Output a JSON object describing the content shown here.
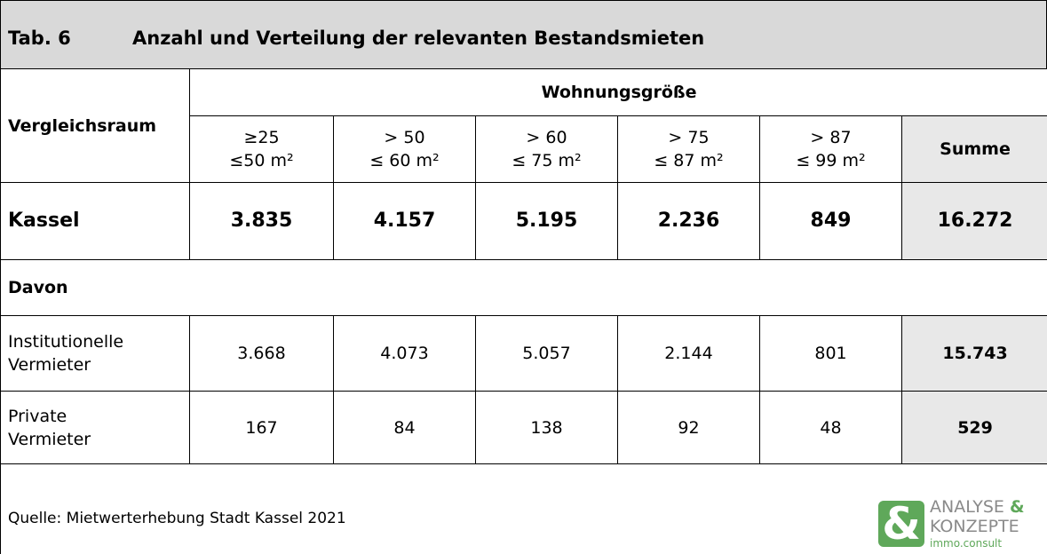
{
  "header": {
    "number": "Tab. 6",
    "title": "Anzahl und Verteilung der relevanten Bestandsmieten"
  },
  "table": {
    "row_header": "Vergleichsraum",
    "group_header": "Wohnungsgröße",
    "columns": [
      [
        "≥25",
        "≤50 m²"
      ],
      [
        "> 50",
        "≤ 60 m²"
      ],
      [
        "> 60",
        "≤ 75 m²"
      ],
      [
        "> 75",
        "≤ 87 m²"
      ],
      [
        "> 87",
        "≤ 99 m²"
      ],
      [
        "Summe"
      ]
    ],
    "rows": [
      {
        "label": [
          "Kassel"
        ],
        "cells": [
          "3.835",
          "4.157",
          "5.195",
          "2.236",
          "849",
          "16.272"
        ]
      },
      {
        "label": [
          "Davon"
        ]
      },
      {
        "label": [
          "Institutionelle",
          "Vermieter"
        ],
        "cells": [
          "3.668",
          "4.073",
          "5.057",
          "2.144",
          "801",
          "15.743"
        ]
      },
      {
        "label": [
          "Private",
          "Vermieter"
        ],
        "cells": [
          "167",
          "84",
          "138",
          "92",
          "48",
          "529"
        ]
      }
    ]
  },
  "footer": {
    "source": "Quelle: Mietwerterhebung Stadt Kassel 2021"
  },
  "logo": {
    "symbol": "&",
    "line1": "ANALYSE",
    "amp": "&",
    "line2": "KONZEPTE",
    "line3": "immo.consult"
  }
}
